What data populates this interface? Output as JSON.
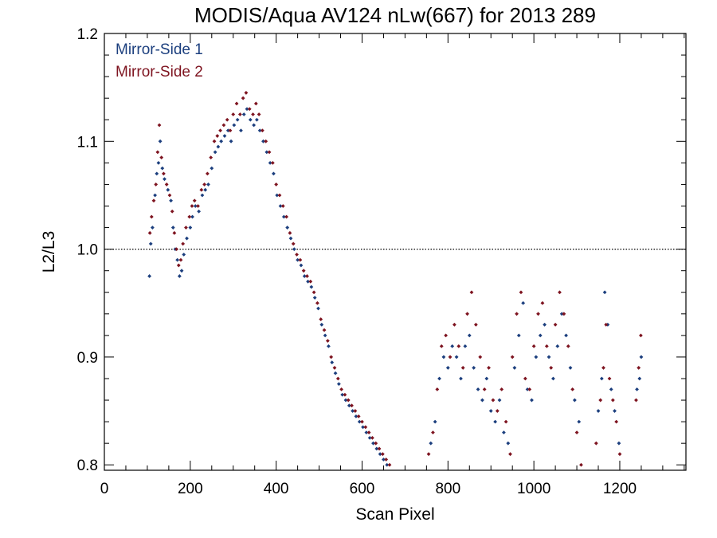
{
  "chart_data": {
    "type": "scatter",
    "title": "MODIS/Aqua AV124 nLw(667) for 2013 289",
    "xlabel": "Scan Pixel",
    "ylabel": "L2/L3",
    "xlim": [
      0,
      1354
    ],
    "ylim": [
      0.795,
      1.2
    ],
    "x_ticks": [
      0,
      200,
      400,
      600,
      800,
      1000,
      1200
    ],
    "x_tick_labels": [
      "0",
      "200",
      "400",
      "600",
      "800",
      "1000",
      "1200"
    ],
    "y_ticks": [
      0.8,
      0.9,
      1.0,
      1.1,
      1.2
    ],
    "y_tick_labels": [
      "0.8",
      "0.9",
      "1.0",
      "1.1",
      "1.2"
    ],
    "reference_line": {
      "y": 1.0,
      "style": "dotted"
    },
    "grid": false,
    "legend_position": "top-left",
    "series": [
      {
        "name": "Mirror-Side 1",
        "color": "#1c3f7e",
        "points": [
          [
            105,
            0.975
          ],
          [
            108,
            1.005
          ],
          [
            112,
            1.02
          ],
          [
            118,
            1.05
          ],
          [
            122,
            1.07
          ],
          [
            126,
            1.08
          ],
          [
            130,
            1.1
          ],
          [
            135,
            1.075
          ],
          [
            140,
            1.065
          ],
          [
            148,
            1.055
          ],
          [
            155,
            1.045
          ],
          [
            160,
            1.02
          ],
          [
            165,
            1.0
          ],
          [
            170,
            0.99
          ],
          [
            175,
            0.975
          ],
          [
            180,
            0.98
          ],
          [
            185,
            0.995
          ],
          [
            192,
            1.01
          ],
          [
            200,
            1.02
          ],
          [
            205,
            1.03
          ],
          [
            212,
            1.04
          ],
          [
            220,
            1.035
          ],
          [
            228,
            1.05
          ],
          [
            235,
            1.055
          ],
          [
            242,
            1.06
          ],
          [
            250,
            1.075
          ],
          [
            258,
            1.09
          ],
          [
            265,
            1.095
          ],
          [
            272,
            1.1
          ],
          [
            280,
            1.105
          ],
          [
            288,
            1.11
          ],
          [
            295,
            1.1
          ],
          [
            302,
            1.115
          ],
          [
            310,
            1.12
          ],
          [
            318,
            1.11
          ],
          [
            325,
            1.125
          ],
          [
            332,
            1.13
          ],
          [
            340,
            1.12
          ],
          [
            348,
            1.115
          ],
          [
            355,
            1.12
          ],
          [
            362,
            1.11
          ],
          [
            370,
            1.1
          ],
          [
            378,
            1.09
          ],
          [
            386,
            1.08
          ],
          [
            394,
            1.07
          ],
          [
            402,
            1.05
          ],
          [
            410,
            1.04
          ],
          [
            418,
            1.03
          ],
          [
            426,
            1.02
          ],
          [
            434,
            1.01
          ],
          [
            442,
            1.0
          ],
          [
            450,
            0.99
          ],
          [
            458,
            0.985
          ],
          [
            466,
            0.975
          ],
          [
            474,
            0.97
          ],
          [
            482,
            0.965
          ],
          [
            490,
            0.955
          ],
          [
            498,
            0.945
          ],
          [
            506,
            0.93
          ],
          [
            514,
            0.92
          ],
          [
            522,
            0.91
          ],
          [
            530,
            0.895
          ],
          [
            538,
            0.885
          ],
          [
            546,
            0.875
          ],
          [
            554,
            0.865
          ],
          [
            562,
            0.86
          ],
          [
            570,
            0.855
          ],
          [
            578,
            0.85
          ],
          [
            586,
            0.845
          ],
          [
            594,
            0.84
          ],
          [
            602,
            0.835
          ],
          [
            610,
            0.83
          ],
          [
            618,
            0.825
          ],
          [
            626,
            0.82
          ],
          [
            634,
            0.815
          ],
          [
            642,
            0.81
          ],
          [
            650,
            0.805
          ],
          [
            658,
            0.8
          ],
          [
            760,
            0.82
          ],
          [
            770,
            0.84
          ],
          [
            780,
            0.88
          ],
          [
            790,
            0.9
          ],
          [
            800,
            0.89
          ],
          [
            810,
            0.91
          ],
          [
            820,
            0.9
          ],
          [
            830,
            0.88
          ],
          [
            840,
            0.91
          ],
          [
            850,
            0.92
          ],
          [
            860,
            0.89
          ],
          [
            870,
            0.87
          ],
          [
            880,
            0.86
          ],
          [
            890,
            0.88
          ],
          [
            900,
            0.85
          ],
          [
            910,
            0.84
          ],
          [
            920,
            0.86
          ],
          [
            930,
            0.83
          ],
          [
            940,
            0.82
          ],
          [
            955,
            0.89
          ],
          [
            965,
            0.92
          ],
          [
            975,
            0.95
          ],
          [
            985,
            0.87
          ],
          [
            995,
            0.86
          ],
          [
            1005,
            0.9
          ],
          [
            1015,
            0.92
          ],
          [
            1025,
            0.93
          ],
          [
            1035,
            0.9
          ],
          [
            1045,
            0.88
          ],
          [
            1055,
            0.91
          ],
          [
            1065,
            0.94
          ],
          [
            1075,
            0.92
          ],
          [
            1085,
            0.89
          ],
          [
            1095,
            0.86
          ],
          [
            1105,
            0.84
          ],
          [
            1150,
            0.85
          ],
          [
            1158,
            0.88
          ],
          [
            1165,
            0.96
          ],
          [
            1172,
            0.93
          ],
          [
            1180,
            0.87
          ],
          [
            1188,
            0.85
          ],
          [
            1198,
            0.82
          ],
          [
            1240,
            0.87
          ],
          [
            1246,
            0.88
          ],
          [
            1250,
            0.9
          ]
        ]
      },
      {
        "name": "Mirror-Side 2",
        "color": "#7e1420",
        "points": [
          [
            106,
            1.015
          ],
          [
            110,
            1.03
          ],
          [
            115,
            1.045
          ],
          [
            120,
            1.06
          ],
          [
            124,
            1.09
          ],
          [
            128,
            1.115
          ],
          [
            133,
            1.085
          ],
          [
            138,
            1.07
          ],
          [
            145,
            1.06
          ],
          [
            152,
            1.05
          ],
          [
            158,
            1.035
          ],
          [
            163,
            1.015
          ],
          [
            168,
            1.0
          ],
          [
            173,
            0.985
          ],
          [
            178,
            0.99
          ],
          [
            183,
            1.005
          ],
          [
            190,
            1.02
          ],
          [
            198,
            1.03
          ],
          [
            204,
            1.04
          ],
          [
            210,
            1.045
          ],
          [
            218,
            1.04
          ],
          [
            226,
            1.055
          ],
          [
            233,
            1.06
          ],
          [
            240,
            1.07
          ],
          [
            248,
            1.085
          ],
          [
            256,
            1.1
          ],
          [
            263,
            1.105
          ],
          [
            270,
            1.11
          ],
          [
            278,
            1.115
          ],
          [
            286,
            1.12
          ],
          [
            293,
            1.11
          ],
          [
            300,
            1.125
          ],
          [
            308,
            1.135
          ],
          [
            316,
            1.125
          ],
          [
            323,
            1.14
          ],
          [
            330,
            1.145
          ],
          [
            338,
            1.13
          ],
          [
            346,
            1.125
          ],
          [
            353,
            1.135
          ],
          [
            360,
            1.125
          ],
          [
            368,
            1.11
          ],
          [
            376,
            1.1
          ],
          [
            384,
            1.09
          ],
          [
            392,
            1.08
          ],
          [
            400,
            1.06
          ],
          [
            408,
            1.05
          ],
          [
            416,
            1.04
          ],
          [
            424,
            1.03
          ],
          [
            432,
            1.015
          ],
          [
            440,
            1.005
          ],
          [
            448,
            0.995
          ],
          [
            456,
            0.99
          ],
          [
            464,
            0.98
          ],
          [
            472,
            0.975
          ],
          [
            480,
            0.97
          ],
          [
            488,
            0.96
          ],
          [
            496,
            0.95
          ],
          [
            504,
            0.935
          ],
          [
            512,
            0.925
          ],
          [
            520,
            0.915
          ],
          [
            528,
            0.9
          ],
          [
            536,
            0.89
          ],
          [
            544,
            0.88
          ],
          [
            552,
            0.87
          ],
          [
            560,
            0.865
          ],
          [
            568,
            0.86
          ],
          [
            576,
            0.855
          ],
          [
            584,
            0.85
          ],
          [
            592,
            0.845
          ],
          [
            600,
            0.84
          ],
          [
            608,
            0.835
          ],
          [
            616,
            0.83
          ],
          [
            624,
            0.825
          ],
          [
            632,
            0.82
          ],
          [
            640,
            0.815
          ],
          [
            648,
            0.81
          ],
          [
            656,
            0.805
          ],
          [
            664,
            0.8
          ],
          [
            755,
            0.81
          ],
          [
            765,
            0.83
          ],
          [
            775,
            0.87
          ],
          [
            785,
            0.91
          ],
          [
            795,
            0.92
          ],
          [
            805,
            0.9
          ],
          [
            815,
            0.93
          ],
          [
            825,
            0.91
          ],
          [
            835,
            0.89
          ],
          [
            845,
            0.94
          ],
          [
            855,
            0.96
          ],
          [
            865,
            0.93
          ],
          [
            875,
            0.9
          ],
          [
            885,
            0.87
          ],
          [
            895,
            0.89
          ],
          [
            905,
            0.86
          ],
          [
            915,
            0.85
          ],
          [
            925,
            0.87
          ],
          [
            935,
            0.84
          ],
          [
            945,
            0.81
          ],
          [
            950,
            0.9
          ],
          [
            960,
            0.94
          ],
          [
            970,
            0.96
          ],
          [
            980,
            0.88
          ],
          [
            990,
            0.87
          ],
          [
            1000,
            0.91
          ],
          [
            1010,
            0.94
          ],
          [
            1020,
            0.95
          ],
          [
            1030,
            0.91
          ],
          [
            1040,
            0.89
          ],
          [
            1050,
            0.93
          ],
          [
            1060,
            0.96
          ],
          [
            1070,
            0.94
          ],
          [
            1080,
            0.91
          ],
          [
            1090,
            0.87
          ],
          [
            1100,
            0.83
          ],
          [
            1110,
            0.8
          ],
          [
            1145,
            0.82
          ],
          [
            1155,
            0.86
          ],
          [
            1162,
            0.89
          ],
          [
            1168,
            0.93
          ],
          [
            1176,
            0.88
          ],
          [
            1184,
            0.86
          ],
          [
            1192,
            0.84
          ],
          [
            1200,
            0.81
          ],
          [
            1238,
            0.86
          ],
          [
            1244,
            0.89
          ],
          [
            1249,
            0.92
          ]
        ]
      }
    ]
  }
}
